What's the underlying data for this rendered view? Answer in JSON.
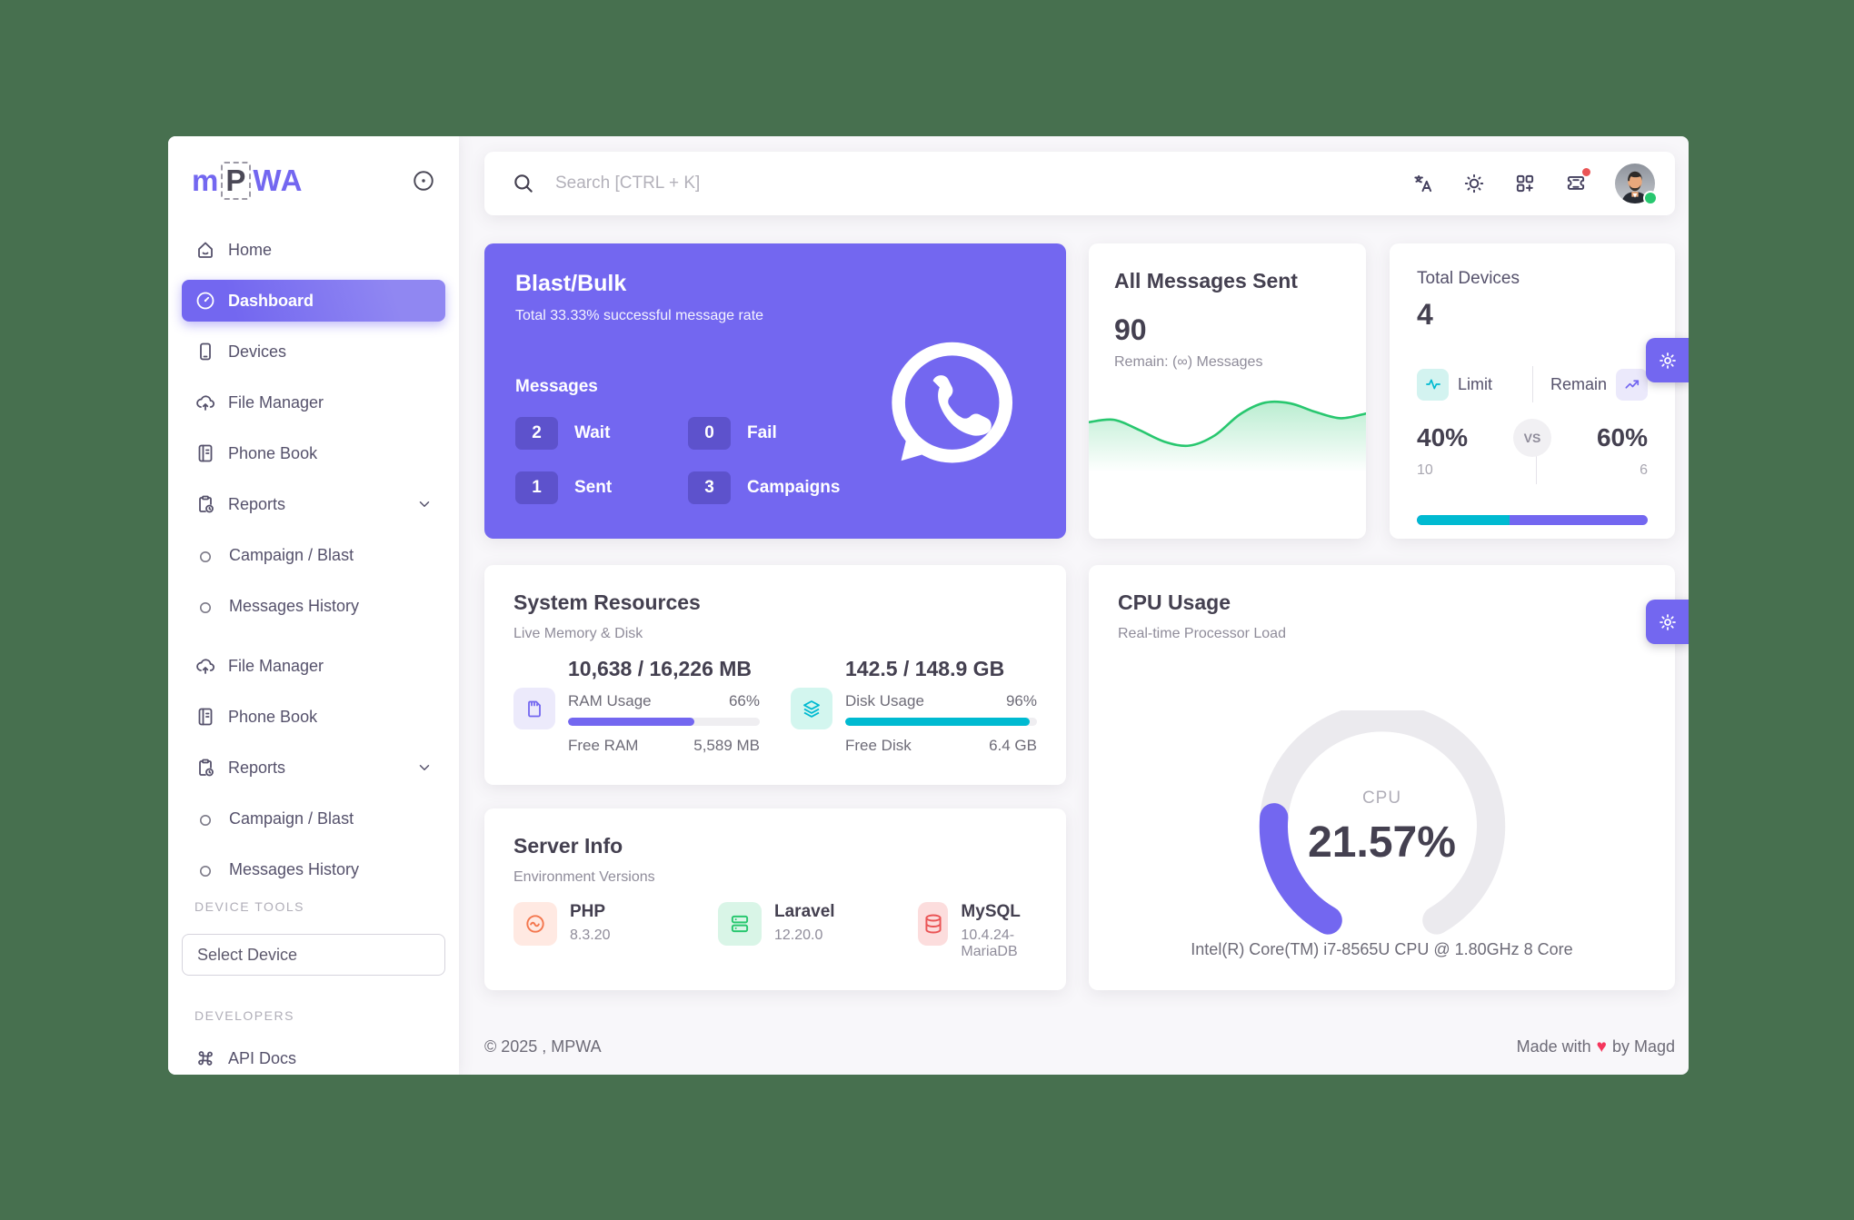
{
  "colors": {
    "primary": "#7367f0",
    "teal": "#00bad1",
    "success": "#28c76f",
    "danger": "#ea5455",
    "page_bg": "#f8f7fa",
    "canvas_bg": "#47704f"
  },
  "brand": {
    "logo_m": "m",
    "logo_p": "P",
    "logo_wa": "WA"
  },
  "sidebar": {
    "items": [
      {
        "label": "Home"
      },
      {
        "label": "Dashboard"
      },
      {
        "label": "Devices"
      },
      {
        "label": "File Manager"
      },
      {
        "label": "Phone Book"
      },
      {
        "label": "Reports"
      },
      {
        "label": "Campaign / Blast"
      },
      {
        "label": "Messages History"
      },
      {
        "label": "File Manager"
      },
      {
        "label": "Phone Book"
      },
      {
        "label": "Reports"
      },
      {
        "label": "Campaign / Blast"
      },
      {
        "label": "Messages History"
      }
    ],
    "section_device_tools": "DEVICE TOOLS",
    "select_device": "Select Device",
    "section_developers": "DEVELOPERS",
    "api_docs": "API Docs"
  },
  "topbar": {
    "search_placeholder": "Search [CTRL + K]"
  },
  "blast": {
    "title": "Blast/Bulk",
    "subtitle": "Total 33.33% successful message rate",
    "messages_label": "Messages",
    "stats": [
      {
        "value": "2",
        "label": "Wait"
      },
      {
        "value": "0",
        "label": "Fail"
      },
      {
        "value": "1",
        "label": "Sent"
      },
      {
        "value": "3",
        "label": "Campaigns"
      }
    ]
  },
  "messages_sent": {
    "title": "All Messages Sent",
    "count": "90",
    "remain": "Remain: (∞) Messages",
    "chart_data": {
      "type": "area",
      "values": [
        55,
        58,
        45,
        30,
        25,
        38,
        65,
        80,
        79,
        68,
        60,
        66
      ],
      "color": "#28c76f",
      "grid": false,
      "axes": false
    }
  },
  "devices": {
    "title": "Total Devices",
    "count": "4",
    "limit_label": "Limit",
    "remain_label": "Remain",
    "vs": "VS",
    "limit_pct_text": "40%",
    "remain_pct_text": "60%",
    "limit_value": "10",
    "remain_value": "6",
    "limit_percent": 40,
    "remain_percent": 60
  },
  "system": {
    "title": "System Resources",
    "subtitle": "Live Memory & Disk",
    "ram": {
      "amount": "10,638 / 16,226 MB",
      "usage_label": "RAM Usage",
      "usage_pct_text": "66%",
      "percent": 66,
      "free_label": "Free RAM",
      "free_value": "5,589 MB"
    },
    "disk": {
      "amount": "142.5 / 148.9 GB",
      "usage_label": "Disk Usage",
      "usage_pct_text": "96%",
      "percent": 96,
      "free_label": "Free Disk",
      "free_value": "6.4 GB"
    }
  },
  "server": {
    "title": "Server Info",
    "subtitle": "Environment Versions",
    "items": [
      {
        "name": "PHP",
        "version": "8.3.20"
      },
      {
        "name": "Laravel",
        "version": "12.20.0"
      },
      {
        "name": "MySQL",
        "version": "10.4.24-MariaDB"
      }
    ]
  },
  "cpu": {
    "title": "CPU Usage",
    "subtitle": "Real-time Processor Load",
    "center_label": "CPU",
    "percent_text": "21.57%",
    "percent": 21.57,
    "processor": "Intel(R) Core(TM) i7-8565U CPU @ 1.80GHz 8 Core"
  },
  "footer": {
    "copyright": "© 2025 , MPWA",
    "made_with": "Made with",
    "by": "by Magd"
  }
}
